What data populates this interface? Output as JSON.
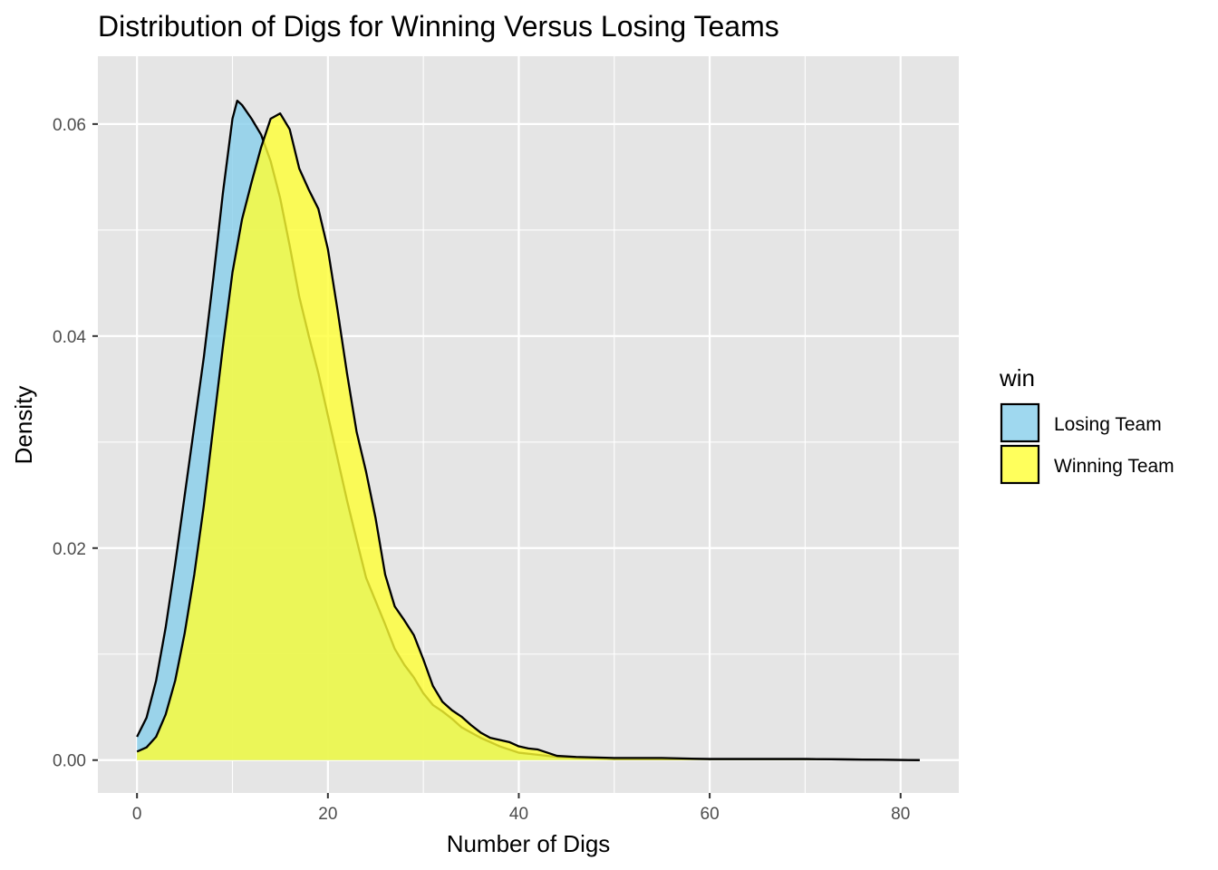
{
  "chart_data": {
    "type": "area",
    "subtype": "density",
    "title": "Distribution of Digs for Winning Versus Losing Teams",
    "xlabel": "Number of Digs",
    "ylabel": "Density",
    "xlim": [
      -4.1,
      86.1
    ],
    "ylim": [
      -0.0031,
      0.0664
    ],
    "x_ticks": [
      0,
      20,
      40,
      60,
      80
    ],
    "x_tick_labels": [
      "0",
      "20",
      "40",
      "60",
      "80"
    ],
    "y_ticks": [
      0.0,
      0.02,
      0.04,
      0.06
    ],
    "y_tick_labels": [
      "0.00",
      "0.02",
      "0.04",
      "0.06"
    ],
    "grid": true,
    "legend": {
      "title": "win",
      "position": "right"
    },
    "colors": {
      "panel": "#e5e5e5",
      "grid": "#ffffff",
      "outline": "#000000"
    },
    "series": [
      {
        "name": "Losing Team",
        "color": "#87ceeb",
        "opacity": 0.8,
        "points": [
          [
            0,
            0.0022
          ],
          [
            1,
            0.004
          ],
          [
            2,
            0.0075
          ],
          [
            3,
            0.0125
          ],
          [
            4,
            0.0185
          ],
          [
            5,
            0.025
          ],
          [
            6,
            0.0315
          ],
          [
            7,
            0.038
          ],
          [
            8,
            0.0455
          ],
          [
            9,
            0.0535
          ],
          [
            10,
            0.0605
          ],
          [
            10.5,
            0.0622
          ],
          [
            11,
            0.0618
          ],
          [
            12,
            0.0605
          ],
          [
            13,
            0.059
          ],
          [
            14,
            0.0565
          ],
          [
            15,
            0.053
          ],
          [
            16,
            0.0485
          ],
          [
            17,
            0.0437
          ],
          [
            18,
            0.04
          ],
          [
            19,
            0.0365
          ],
          [
            20,
            0.0325
          ],
          [
            21,
            0.0285
          ],
          [
            22,
            0.0245
          ],
          [
            23,
            0.0208
          ],
          [
            24,
            0.0172
          ],
          [
            25,
            0.015
          ],
          [
            26,
            0.0128
          ],
          [
            27,
            0.0105
          ],
          [
            28,
            0.009
          ],
          [
            29,
            0.0078
          ],
          [
            30,
            0.0063
          ],
          [
            31,
            0.0052
          ],
          [
            32,
            0.0046
          ],
          [
            33,
            0.0039
          ],
          [
            34,
            0.0031
          ],
          [
            35,
            0.0026
          ],
          [
            36,
            0.0021
          ],
          [
            37,
            0.0017
          ],
          [
            38,
            0.0013
          ],
          [
            39,
            0.001
          ],
          [
            40,
            0.0007
          ],
          [
            42,
            0.0005
          ],
          [
            44,
            0.0003
          ],
          [
            46,
            0.0002
          ],
          [
            50,
            0.0001
          ],
          [
            60,
            0.0001
          ],
          [
            70,
            0.0001
          ],
          [
            82,
            0.0
          ]
        ]
      },
      {
        "name": "Winning Team",
        "color": "#ffff33",
        "opacity": 0.8,
        "points": [
          [
            0,
            0.0008
          ],
          [
            1,
            0.0012
          ],
          [
            2,
            0.0022
          ],
          [
            3,
            0.0043
          ],
          [
            4,
            0.0075
          ],
          [
            5,
            0.012
          ],
          [
            6,
            0.0175
          ],
          [
            7,
            0.024
          ],
          [
            8,
            0.0315
          ],
          [
            9,
            0.039
          ],
          [
            10,
            0.046
          ],
          [
            11,
            0.051
          ],
          [
            12,
            0.0545
          ],
          [
            13,
            0.0578
          ],
          [
            14,
            0.0605
          ],
          [
            15,
            0.061
          ],
          [
            16,
            0.0595
          ],
          [
            17,
            0.0558
          ],
          [
            18,
            0.0538
          ],
          [
            19,
            0.052
          ],
          [
            20,
            0.0482
          ],
          [
            21,
            0.0425
          ],
          [
            22,
            0.0365
          ],
          [
            23,
            0.031
          ],
          [
            24,
            0.0272
          ],
          [
            25,
            0.0228
          ],
          [
            26,
            0.0175
          ],
          [
            27,
            0.0145
          ],
          [
            28,
            0.0132
          ],
          [
            29,
            0.0118
          ],
          [
            30,
            0.0095
          ],
          [
            31,
            0.007
          ],
          [
            32,
            0.0055
          ],
          [
            33,
            0.0047
          ],
          [
            34,
            0.0041
          ],
          [
            35,
            0.0033
          ],
          [
            36,
            0.0026
          ],
          [
            37,
            0.0021
          ],
          [
            38,
            0.0019
          ],
          [
            39,
            0.0017
          ],
          [
            40,
            0.0013
          ],
          [
            41,
            0.0011
          ],
          [
            42,
            0.001
          ],
          [
            43,
            0.0007
          ],
          [
            44,
            0.0004
          ],
          [
            46,
            0.0003
          ],
          [
            50,
            0.0002
          ],
          [
            55,
            0.0002
          ],
          [
            60,
            0.0001
          ],
          [
            70,
            0.0001
          ],
          [
            82,
            0.0
          ]
        ]
      }
    ]
  }
}
